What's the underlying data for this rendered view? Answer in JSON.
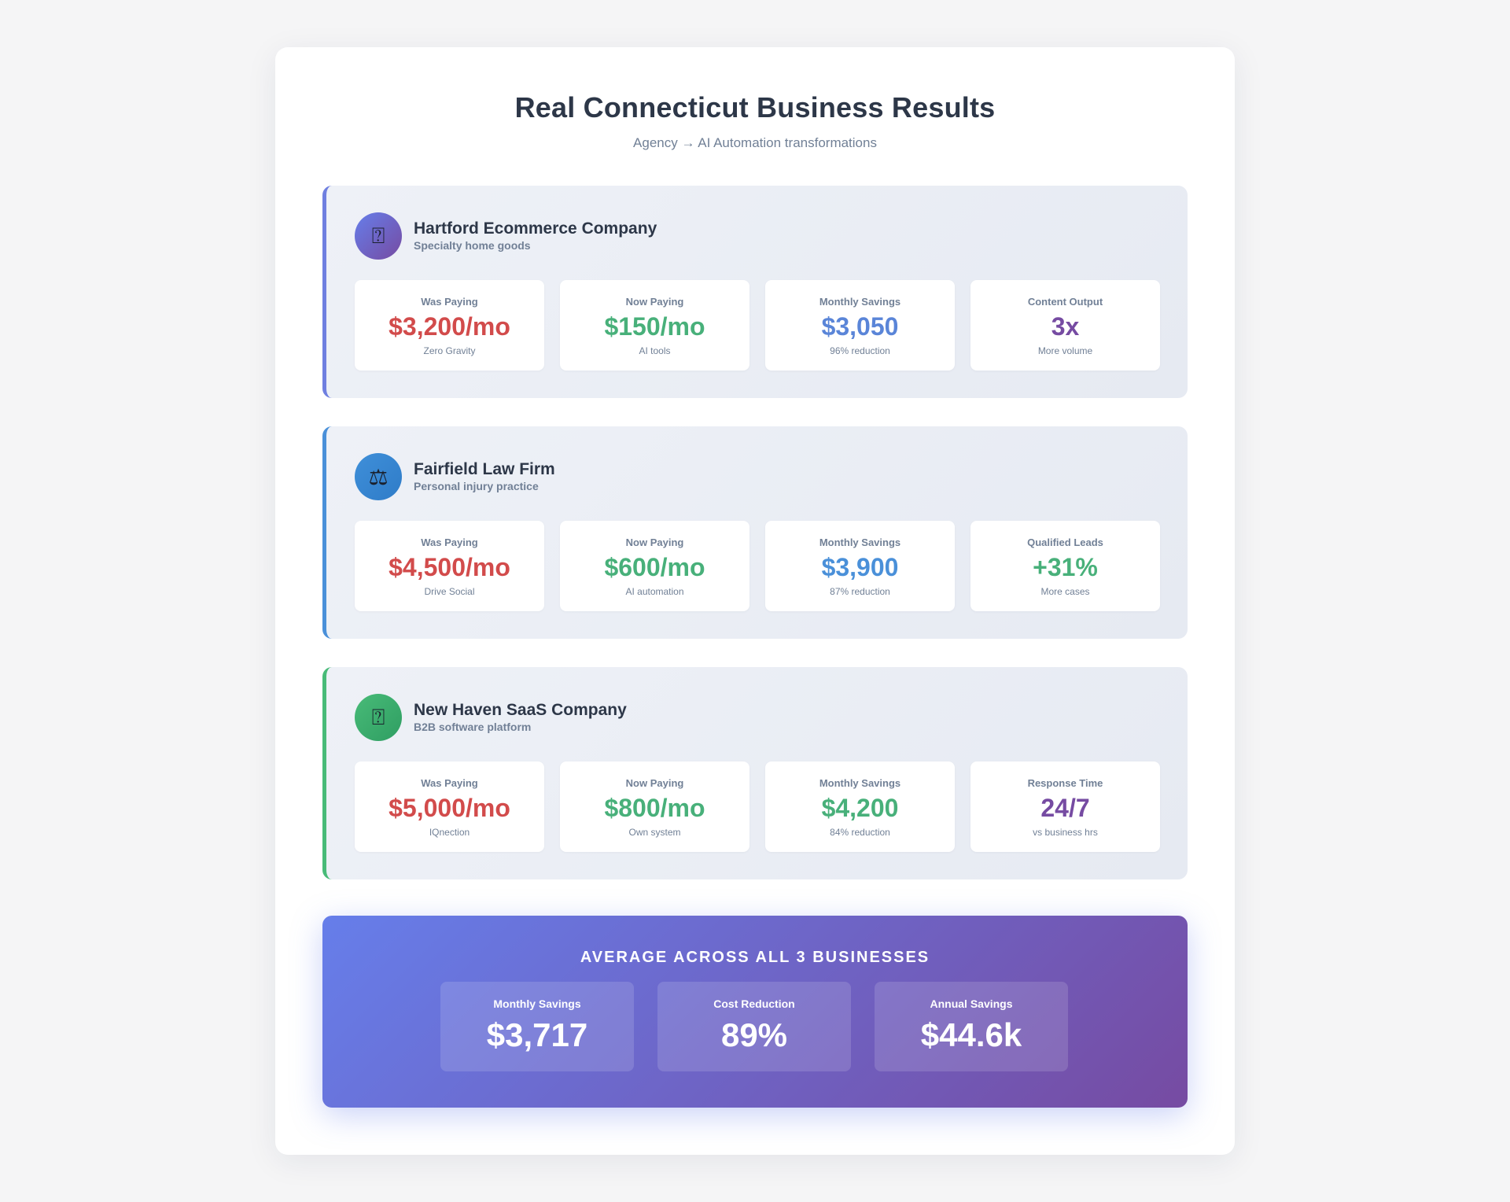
{
  "header": {
    "title": "Real Connecticut Business Results",
    "subtitle": "Agency → AI Automation transformations"
  },
  "businesses": [
    {
      "icon": "box-icon",
      "icon_glyph": "⍰",
      "name": "Hartford Ecommerce Company",
      "description": "Specialty home goods",
      "metrics": [
        {
          "label": "Was Paying",
          "value": "$3,200/mo",
          "note": "Zero Gravity"
        },
        {
          "label": "Now Paying",
          "value": "$150/mo",
          "note": "AI tools"
        },
        {
          "label": "Monthly Savings",
          "value": "$3,050",
          "note": "96% reduction"
        },
        {
          "label": "Content Output",
          "value": "3x",
          "note": "More volume"
        }
      ]
    },
    {
      "icon": "scales-icon",
      "icon_glyph": "⚖",
      "name": "Fairfield Law Firm",
      "description": "Personal injury practice",
      "metrics": [
        {
          "label": "Was Paying",
          "value": "$4,500/mo",
          "note": "Drive Social"
        },
        {
          "label": "Now Paying",
          "value": "$600/mo",
          "note": "AI automation"
        },
        {
          "label": "Monthly Savings",
          "value": "$3,900",
          "note": "87% reduction"
        },
        {
          "label": "Qualified Leads",
          "value": "+31%",
          "note": "More cases"
        }
      ]
    },
    {
      "icon": "laptop-icon",
      "icon_glyph": "⍰",
      "name": "New Haven SaaS Company",
      "description": "B2B software platform",
      "metrics": [
        {
          "label": "Was Paying",
          "value": "$5,000/mo",
          "note": "IQnection"
        },
        {
          "label": "Now Paying",
          "value": "$800/mo",
          "note": "Own system"
        },
        {
          "label": "Monthly Savings",
          "value": "$4,200",
          "note": "84% reduction"
        },
        {
          "label": "Response Time",
          "value": "24/7",
          "note": "vs business hrs"
        }
      ]
    }
  ],
  "summary": {
    "title": "AVERAGE ACROSS ALL 3 BUSINESSES",
    "stats": [
      {
        "label": "Monthly Savings",
        "value": "$3,717"
      },
      {
        "label": "Cost Reduction",
        "value": "89%"
      },
      {
        "label": "Annual Savings",
        "value": "$44.6k"
      }
    ]
  },
  "colors": {
    "accent": "#667eea",
    "accent_end": "#764ba2",
    "was_paying": "#d24b4b",
    "now_paying": "#48b07a"
  }
}
